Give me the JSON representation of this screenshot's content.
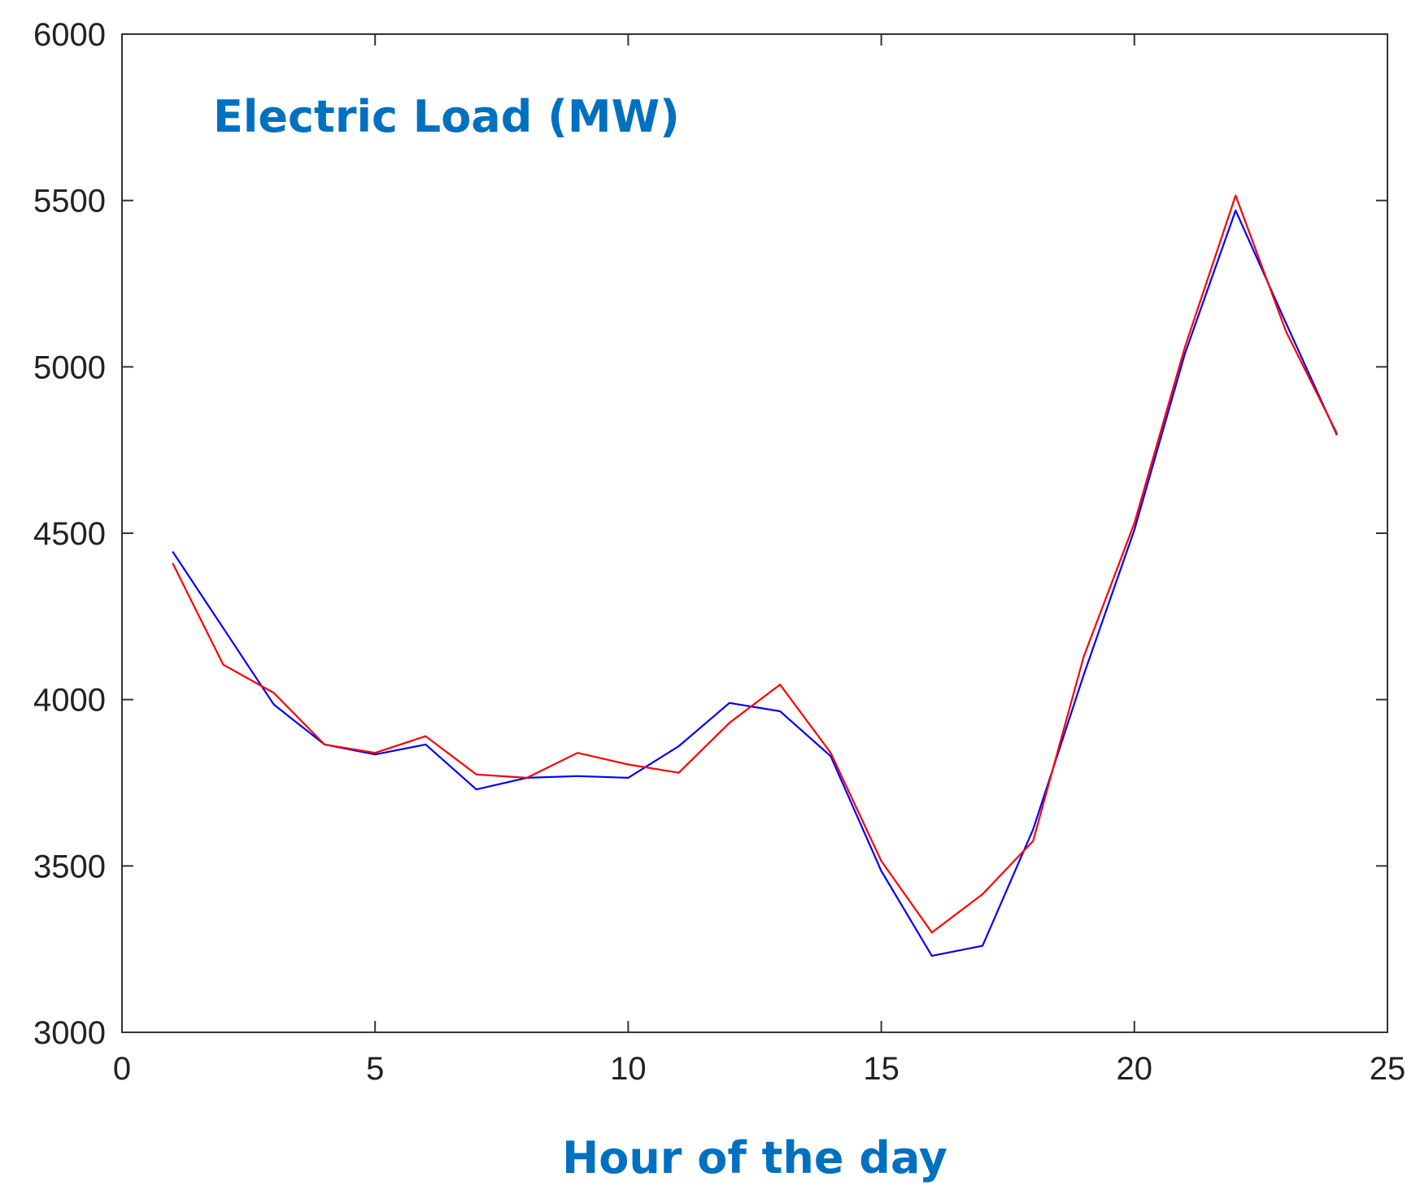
{
  "chart_data": {
    "type": "line",
    "annotation": "Electric Load (MW)",
    "xlabel": "Hour of the day",
    "ylabel": "",
    "xlim": [
      0,
      25
    ],
    "ylim": [
      3000,
      6000
    ],
    "xticks": [
      0,
      5,
      10,
      15,
      20,
      25
    ],
    "yticks": [
      3000,
      3500,
      4000,
      4500,
      5000,
      5500,
      6000
    ],
    "grid": false,
    "legend": "none",
    "x": [
      1,
      2,
      3,
      4,
      5,
      6,
      7,
      8,
      9,
      10,
      11,
      12,
      13,
      14,
      15,
      16,
      17,
      18,
      19,
      20,
      21,
      22,
      23,
      24
    ],
    "series": [
      {
        "color": "#0000ff",
        "values": [
          4445,
          4215,
          3985,
          3865,
          3835,
          3865,
          3730,
          3765,
          3770,
          3765,
          3860,
          3990,
          3965,
          3830,
          3485,
          3230,
          3260,
          3610,
          4075,
          4510,
          5040,
          5470,
          5130,
          4795
        ]
      },
      {
        "color": "#ff0000",
        "values": [
          4410,
          4105,
          4020,
          3865,
          3840,
          3890,
          3775,
          3765,
          3840,
          3805,
          3780,
          3930,
          4045,
          3840,
          3515,
          3300,
          3415,
          3575,
          4130,
          4530,
          5060,
          5515,
          5105,
          4800
        ]
      }
    ]
  }
}
